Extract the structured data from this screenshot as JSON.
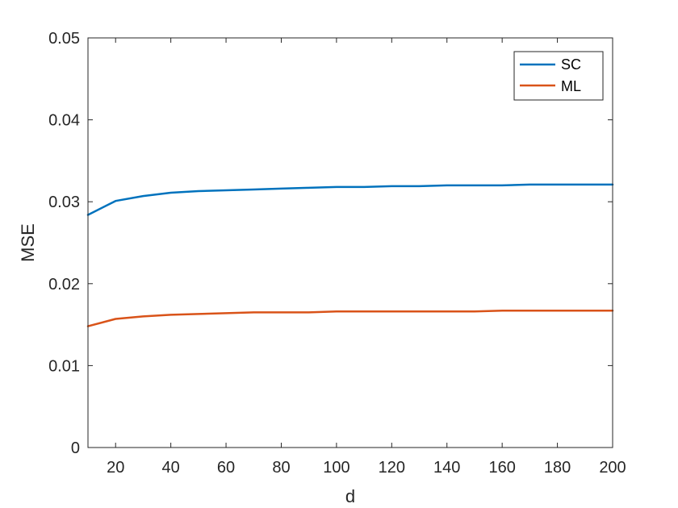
{
  "chart_data": {
    "type": "line",
    "title": "",
    "xlabel": "d",
    "ylabel": "MSE",
    "xlim": [
      10,
      200
    ],
    "ylim": [
      0,
      0.05
    ],
    "xticks": [
      20,
      40,
      60,
      80,
      100,
      120,
      140,
      160,
      180,
      200
    ],
    "yticks": [
      0,
      0.01,
      0.02,
      0.03,
      0.04,
      0.05
    ],
    "xtick_labels": [
      "20",
      "40",
      "60",
      "80",
      "100",
      "120",
      "140",
      "160",
      "180",
      "200"
    ],
    "ytick_labels": [
      "0",
      "0.01",
      "0.02",
      "0.03",
      "0.04",
      "0.05"
    ],
    "grid": false,
    "legend_position": "top-right",
    "x": [
      10,
      20,
      30,
      40,
      50,
      60,
      70,
      80,
      90,
      100,
      110,
      120,
      130,
      140,
      150,
      160,
      170,
      180,
      190,
      200
    ],
    "series": [
      {
        "name": "SC",
        "color": "#0072BD",
        "values": [
          0.0284,
          0.0301,
          0.0307,
          0.0311,
          0.0313,
          0.0314,
          0.0315,
          0.0316,
          0.0317,
          0.0318,
          0.0318,
          0.0319,
          0.0319,
          0.032,
          0.032,
          0.032,
          0.0321,
          0.0321,
          0.0321,
          0.0321
        ]
      },
      {
        "name": "ML",
        "color": "#D95319",
        "values": [
          0.0148,
          0.0157,
          0.016,
          0.0162,
          0.0163,
          0.0164,
          0.0165,
          0.0165,
          0.0165,
          0.0166,
          0.0166,
          0.0166,
          0.0166,
          0.0166,
          0.0166,
          0.0167,
          0.0167,
          0.0167,
          0.0167,
          0.0167
        ]
      }
    ]
  }
}
